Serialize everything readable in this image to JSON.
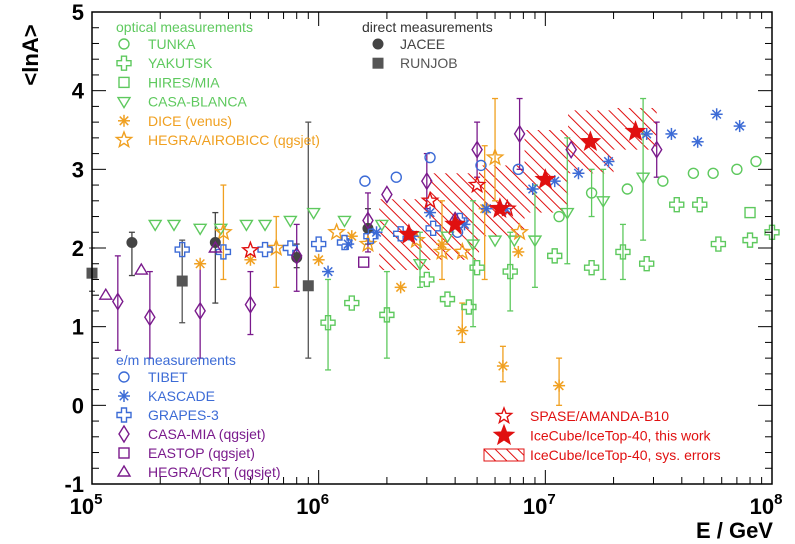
{
  "chart_data": {
    "type": "scatter",
    "title": "",
    "xlabel": "E / GeV",
    "ylabel": "<lnA>",
    "xscale": "log",
    "xlim": [
      100000,
      100000000
    ],
    "ylim": [
      -1,
      5
    ],
    "x_ticks": [
      {
        "value": 100000,
        "base": "10",
        "exp": "5"
      },
      {
        "value": 1000000,
        "base": "10",
        "exp": "6"
      },
      {
        "value": 10000000,
        "base": "10",
        "exp": "7"
      },
      {
        "value": 100000000,
        "base": "10",
        "exp": "8"
      }
    ],
    "y_ticks": [
      "-1",
      "0",
      "1",
      "2",
      "3",
      "4",
      "5"
    ],
    "legend_groups": [
      {
        "title": "optical measurements",
        "color": "#5ec95e",
        "placement": "top-left"
      },
      {
        "title": "direct measurements",
        "color": "#333333",
        "placement": "top-center"
      },
      {
        "title": "e/m measurements",
        "color": "#3c6bd6",
        "placement": "bottom-left"
      }
    ],
    "series": [
      {
        "name": "TUNKA",
        "group": 0,
        "marker": "circle-open",
        "color": "#5ec95e",
        "points": [
          [
            11500000,
            2.4
          ],
          [
            16000000,
            2.7
          ],
          [
            23000000,
            2.75
          ],
          [
            33000000,
            2.85
          ],
          [
            45000000,
            2.95
          ],
          [
            55000000,
            2.95
          ],
          [
            70000000,
            3.0
          ],
          [
            85000000,
            3.1
          ]
        ]
      },
      {
        "name": "YAKUTSK",
        "group": 0,
        "marker": "cross-open",
        "color": "#5ec95e",
        "points": [
          [
            1100000,
            1.05
          ],
          [
            1400000,
            1.3
          ],
          [
            2000000,
            1.15
          ],
          [
            3000000,
            1.6
          ],
          [
            3700000,
            1.35
          ],
          [
            4600000,
            1.25
          ],
          [
            5000000,
            1.75
          ],
          [
            7000000,
            1.7
          ],
          [
            11000000,
            1.9
          ],
          [
            16000000,
            1.75
          ],
          [
            22000000,
            1.95
          ],
          [
            28000000,
            1.8
          ],
          [
            38000000,
            2.55
          ],
          [
            48000000,
            2.55
          ],
          [
            58000000,
            2.05
          ],
          [
            80000000,
            2.1
          ],
          [
            100000000,
            2.2
          ]
        ]
      },
      {
        "name": "HIRES/MIA",
        "group": 0,
        "marker": "square-open",
        "color": "#5ec95e",
        "points": [
          [
            80000000,
            2.45
          ]
        ]
      },
      {
        "name": "CASA-BLANCA",
        "group": 0,
        "marker": "tri-down-open",
        "color": "#5ec95e",
        "points": [
          [
            190000,
            2.3
          ],
          [
            230000,
            2.3
          ],
          [
            300000,
            2.25
          ],
          [
            370000,
            2.25
          ],
          [
            480000,
            2.3
          ],
          [
            580000,
            2.3
          ],
          [
            750000,
            2.35
          ],
          [
            950000,
            2.45
          ],
          [
            1300000,
            2.35
          ],
          [
            1900000,
            2.3
          ],
          [
            2800000,
            1.8
          ],
          [
            3700000,
            2.15
          ],
          [
            4800000,
            2.05
          ],
          [
            6000000,
            2.1
          ],
          [
            7300000,
            2.1
          ],
          [
            9000000,
            2.1
          ],
          [
            12500000,
            2.45
          ],
          [
            18000000,
            2.6
          ],
          [
            27000000,
            2.9
          ]
        ]
      },
      {
        "name": "DICE (venus)",
        "group": 0,
        "marker": "asterisk",
        "color": "#f0a020",
        "points": [
          [
            300000,
            1.8
          ],
          [
            500000,
            1.85
          ],
          [
            1000000,
            1.85
          ],
          [
            1400000,
            2.15
          ],
          [
            2300000,
            1.5
          ],
          [
            3500000,
            2.05
          ],
          [
            4300000,
            0.95
          ],
          [
            5400000,
            2.5
          ],
          [
            6500000,
            0.5
          ],
          [
            7600000,
            1.95
          ],
          [
            11500000,
            0.25
          ]
        ]
      },
      {
        "name": "HEGRA/AIROBICC (qgsjet)",
        "group": 0,
        "marker": "star-open",
        "color": "#f0a020",
        "points": [
          [
            380000,
            2.2
          ],
          [
            650000,
            2.0
          ],
          [
            1200000,
            2.2
          ],
          [
            1650000,
            2.05
          ],
          [
            2700000,
            2.1
          ],
          [
            3500000,
            1.95
          ],
          [
            4300000,
            1.95
          ],
          [
            6000000,
            3.15
          ],
          [
            7700000,
            2.2
          ]
        ]
      },
      {
        "name": "JACEE",
        "group": 1,
        "marker": "circle-filled",
        "color": "#444444",
        "points": [
          [
            150000,
            2.07
          ],
          [
            350000,
            2.07
          ],
          [
            800000,
            1.88
          ],
          [
            1650000,
            2.25
          ]
        ]
      },
      {
        "name": "RUNJOB",
        "group": 1,
        "marker": "square-filled",
        "color": "#555555",
        "points": [
          [
            100000,
            1.68
          ],
          [
            250000,
            1.58
          ],
          [
            900000,
            1.52
          ]
        ]
      },
      {
        "name": "TIBET",
        "group": 2,
        "marker": "circle-open",
        "color": "#3c6bd6",
        "points": [
          [
            1600000,
            2.85
          ],
          [
            2200000,
            2.9
          ],
          [
            3100000,
            3.15
          ],
          [
            4100000,
            2.2
          ],
          [
            5200000,
            3.05
          ],
          [
            7600000,
            3.0
          ]
        ]
      },
      {
        "name": "KASCADE",
        "group": 2,
        "marker": "asterisk",
        "color": "#3c6bd6",
        "points": [
          [
            1100000,
            1.7
          ],
          [
            1350000,
            2.05
          ],
          [
            1800000,
            2.2
          ],
          [
            2600000,
            2.15
          ],
          [
            3100000,
            2.45
          ],
          [
            4400000,
            2.3
          ],
          [
            5500000,
            2.5
          ],
          [
            6700000,
            2.5
          ],
          [
            8800000,
            2.75
          ],
          [
            11000000,
            2.85
          ],
          [
            14000000,
            2.95
          ],
          [
            19000000,
            3.1
          ],
          [
            28000000,
            3.45
          ],
          [
            36000000,
            3.45
          ],
          [
            47000000,
            3.35
          ],
          [
            57000000,
            3.7
          ],
          [
            72000000,
            3.55
          ]
        ]
      },
      {
        "name": "GRAPES-3",
        "group": 2,
        "marker": "cross-open",
        "color": "#3c6bd6",
        "points": [
          [
            250000,
            1.98
          ],
          [
            380000,
            1.95
          ],
          [
            580000,
            1.98
          ],
          [
            750000,
            2.0
          ],
          [
            1000000,
            2.05
          ],
          [
            1300000,
            2.07
          ],
          [
            1700000,
            2.15
          ],
          [
            2300000,
            2.18
          ],
          [
            3200000,
            2.25
          ],
          [
            4200000,
            2.35
          ]
        ]
      },
      {
        "name": "CASA-MIA (qgsjet)",
        "group": 2,
        "marker": "diamond-open",
        "color": "#7a1a8c",
        "points": [
          [
            130000,
            1.32
          ],
          [
            180000,
            1.12
          ],
          [
            300000,
            1.2
          ],
          [
            500000,
            1.28
          ],
          [
            800000,
            1.9
          ],
          [
            1650000,
            2.35
          ],
          [
            2000000,
            2.68
          ],
          [
            3000000,
            2.85
          ],
          [
            4000000,
            2.35
          ],
          [
            5000000,
            3.25
          ],
          [
            7700000,
            3.45
          ],
          [
            13000000,
            3.25
          ],
          [
            31000000,
            3.25
          ]
        ]
      },
      {
        "name": "EASTOP (qgsjet)",
        "group": 2,
        "marker": "square-open",
        "color": "#7a1a8c",
        "points": [
          [
            1580000,
            1.82
          ]
        ]
      },
      {
        "name": "HEGRA/CRT (qgsjet)",
        "group": 2,
        "marker": "tri-up-open",
        "color": "#7a1a8c",
        "points": [
          [
            115000,
            1.4
          ],
          [
            165000,
            1.72
          ],
          [
            350000,
            2.0
          ]
        ]
      },
      {
        "name": "SPASE/AMANDA-B10",
        "group": 3,
        "marker": "star-open",
        "color": "#e01010",
        "points": [
          [
            500000,
            1.97
          ],
          [
            3100000,
            2.6
          ],
          [
            5000000,
            2.8
          ],
          [
            6800000,
            2.5
          ]
        ]
      },
      {
        "name": "IceCube/IceTop-40, this work",
        "group": 3,
        "marker": "star-filled",
        "color": "#e01010",
        "points": [
          [
            2500000,
            2.17
          ],
          [
            4000000,
            2.3
          ],
          [
            6300000,
            2.5
          ],
          [
            10000000,
            2.87
          ],
          [
            15800000,
            3.35
          ],
          [
            25000000,
            3.48
          ]
        ]
      },
      {
        "name": "IceCube/IceTop-40, sys. errors",
        "group": 3,
        "marker": "hatch-band",
        "color": "#e01010",
        "points": []
      }
    ],
    "sys_band": [
      {
        "x": [
          1850000,
          3100000
        ],
        "y": [
          1.72,
          2.62
        ]
      },
      {
        "x": [
          3100000,
          5100000
        ],
        "y": [
          1.85,
          2.95
        ]
      },
      {
        "x": [
          5100000,
          8100000
        ],
        "y": [
          2.15,
          3.05
        ]
      },
      {
        "x": [
          8100000,
          12600000
        ],
        "y": [
          2.45,
          3.5
        ]
      },
      {
        "x": [
          12600000,
          20000000
        ],
        "y": [
          2.95,
          3.75
        ]
      },
      {
        "x": [
          20000000,
          31000000
        ],
        "y": [
          3.25,
          3.78
        ]
      }
    ],
    "errorbars": [
      {
        "x": 150000,
        "lo": 1.65,
        "hi": 2.2,
        "color": "#444444"
      },
      {
        "x": 350000,
        "lo": 1.3,
        "hi": 2.45,
        "color": "#444444"
      },
      {
        "x": 800000,
        "lo": 1.75,
        "hi": 2.05,
        "color": "#444444"
      },
      {
        "x": 1650000,
        "lo": 2.05,
        "hi": 2.5,
        "color": "#444444"
      },
      {
        "x": 100000,
        "lo": 1.45,
        "hi": 2.0,
        "color": "#555555"
      },
      {
        "x": 250000,
        "lo": 1.05,
        "hi": 2.1,
        "color": "#555555"
      },
      {
        "x": 900000,
        "lo": 0.6,
        "hi": 3.6,
        "color": "#555555"
      },
      {
        "x": 130000,
        "lo": 0.7,
        "hi": 1.9,
        "color": "#7a1a8c"
      },
      {
        "x": 180000,
        "lo": 0.6,
        "hi": 1.7,
        "color": "#7a1a8c"
      },
      {
        "x": 300000,
        "lo": 0.6,
        "hi": 1.8,
        "color": "#7a1a8c"
      },
      {
        "x": 500000,
        "lo": 0.9,
        "hi": 1.7,
        "color": "#7a1a8c"
      },
      {
        "x": 800000,
        "lo": 1.45,
        "hi": 2.3,
        "color": "#7a1a8c"
      },
      {
        "x": 1650000,
        "lo": 1.95,
        "hi": 2.7,
        "color": "#7a1a8c"
      },
      {
        "x": 3000000,
        "lo": 2.5,
        "hi": 3.2,
        "color": "#7a1a8c"
      },
      {
        "x": 5000000,
        "lo": 2.9,
        "hi": 3.6,
        "color": "#7a1a8c"
      },
      {
        "x": 7700000,
        "lo": 3.0,
        "hi": 3.9,
        "color": "#7a1a8c"
      },
      {
        "x": 31000000,
        "lo": 2.9,
        "hi": 3.6,
        "color": "#7a1a8c"
      },
      {
        "x": 380000,
        "lo": 1.6,
        "hi": 2.8,
        "color": "#f0a020"
      },
      {
        "x": 650000,
        "lo": 1.5,
        "hi": 2.4,
        "color": "#f0a020"
      },
      {
        "x": 3500000,
        "lo": 1.6,
        "hi": 2.6,
        "color": "#f0a020"
      },
      {
        "x": 4300000,
        "lo": 0.8,
        "hi": 1.3,
        "color": "#f0a020"
      },
      {
        "x": 5400000,
        "lo": 1.6,
        "hi": 3.3,
        "color": "#f0a020"
      },
      {
        "x": 6000000,
        "lo": 2.6,
        "hi": 3.9,
        "color": "#f0a020"
      },
      {
        "x": 6500000,
        "lo": 0.3,
        "hi": 0.75,
        "color": "#f0a020"
      },
      {
        "x": 11500000,
        "lo": 0.0,
        "hi": 0.6,
        "color": "#f0a020"
      },
      {
        "x": 1100000,
        "lo": 0.45,
        "hi": 1.6,
        "color": "#5ec95e"
      },
      {
        "x": 2000000,
        "lo": 0.6,
        "hi": 1.7,
        "color": "#5ec95e"
      },
      {
        "x": 2800000,
        "lo": 1.5,
        "hi": 2.2,
        "color": "#5ec95e"
      },
      {
        "x": 4800000,
        "lo": 1.0,
        "hi": 2.6,
        "color": "#5ec95e"
      },
      {
        "x": 7000000,
        "lo": 1.2,
        "hi": 2.2,
        "color": "#5ec95e"
      },
      {
        "x": 9000000,
        "lo": 1.5,
        "hi": 2.8,
        "color": "#5ec95e"
      },
      {
        "x": 12500000,
        "lo": 1.8,
        "hi": 3.4,
        "color": "#5ec95e"
      },
      {
        "x": 18000000,
        "lo": 1.6,
        "hi": 3.0,
        "color": "#5ec95e"
      },
      {
        "x": 27000000,
        "lo": 2.1,
        "hi": 3.9,
        "color": "#5ec95e"
      },
      {
        "x": 22000000,
        "lo": 1.6,
        "hi": 2.3,
        "color": "#5ec95e"
      },
      {
        "x": 16000000,
        "lo": 2.4,
        "hi": 3.0,
        "color": "#5ec95e"
      }
    ],
    "legend_entries_text": [
      "TUNKA",
      "YAKUTSK",
      "HIRES/MIA",
      "CASA-BLANCA",
      "DICE (venus)",
      "HEGRA/AIROBICC (qgsjet)",
      "JACEE",
      "RUNJOB",
      "TIBET",
      "KASCADE",
      "GRAPES-3",
      "CASA-MIA (qgsjet)",
      "EASTOP (qgsjet)",
      "HEGRA/CRT (qgsjet)",
      "SPASE/AMANDA-B10",
      "IceCube/IceTop-40, this work",
      "IceCube/IceTop-40, sys. errors"
    ]
  }
}
